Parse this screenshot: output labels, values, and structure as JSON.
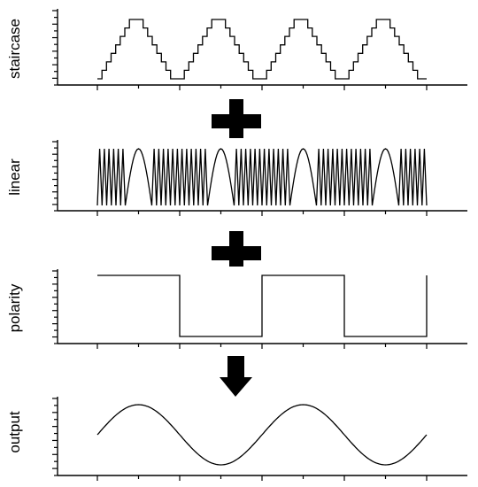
{
  "panels": [
    {
      "id": "staircase",
      "label": "staircase",
      "levels": [
        0,
        1,
        2,
        3,
        4,
        5,
        6,
        7,
        7,
        7,
        6,
        5,
        4,
        3,
        2,
        1,
        0,
        0
      ],
      "periods": 4
    },
    {
      "id": "linear",
      "label": "linear",
      "saw_count_per_group": 6,
      "arch_count": 4
    },
    {
      "id": "polarity",
      "label": "polarity",
      "states": [
        1,
        0,
        1,
        0,
        1
      ]
    },
    {
      "id": "output",
      "label": "output",
      "cycles": 2
    }
  ],
  "operators": [
    "plus",
    "plus",
    "down-arrow"
  ]
}
